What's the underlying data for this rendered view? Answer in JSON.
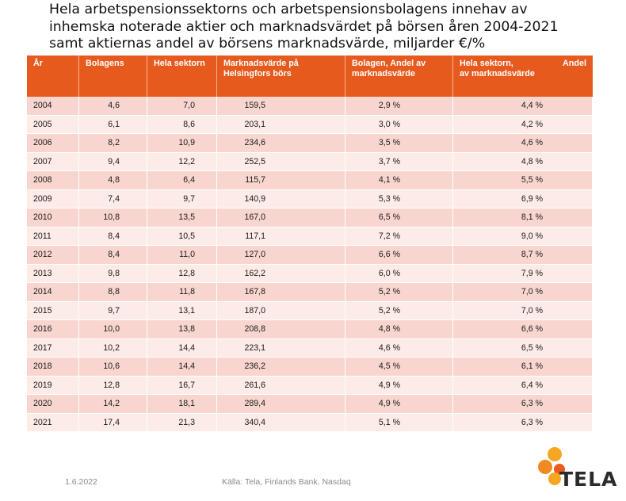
{
  "title_lines": [
    "Hela arbetspensionssektorns och arbetspensionsbolagens innehav av",
    "inhemska noterade aktier och marknadsvärdet på börsen åren 2004-2021",
    "samt aktiernas andel av börsens marknadsvärde, miljarder €/%"
  ],
  "table": {
    "headers": {
      "year": "År",
      "bolagens": "Bolagens",
      "hela_sektorn": "Hela sektorn",
      "marknadsvarde": "Marknadsvärde på Helsingfors börs",
      "bolagen_andel": "Bolagen, Andel av marknadsvärde",
      "hela_sektorn_andel_line1_left": "Hela sektorn,",
      "hela_sektorn_andel_line1_right": "Andel",
      "hela_sektorn_andel_line2": "av marknadsvärde"
    },
    "rows": [
      {
        "year": "2004",
        "bolagens": "4,6",
        "hela": "7,0",
        "marknad": "159,5",
        "bolagen_pct": "2,9 %",
        "hela_pct": "4,4 %"
      },
      {
        "year": "2005",
        "bolagens": "6,1",
        "hela": "8,6",
        "marknad": "203,1",
        "bolagen_pct": "3,0 %",
        "hela_pct": "4,2 %"
      },
      {
        "year": "2006",
        "bolagens": "8,2",
        "hela": "10,9",
        "marknad": "234,6",
        "bolagen_pct": "3,5 %",
        "hela_pct": "4,6 %"
      },
      {
        "year": "2007",
        "bolagens": "9,4",
        "hela": "12,2",
        "marknad": "252,5",
        "bolagen_pct": "3,7 %",
        "hela_pct": "4,8 %"
      },
      {
        "year": "2008",
        "bolagens": "4,8",
        "hela": "6,4",
        "marknad": "115,7",
        "bolagen_pct": "4,1 %",
        "hela_pct": "5,5 %"
      },
      {
        "year": "2009",
        "bolagens": "7,4",
        "hela": "9,7",
        "marknad": "140,9",
        "bolagen_pct": "5,3 %",
        "hela_pct": "6,9 %"
      },
      {
        "year": "2010",
        "bolagens": "10,8",
        "hela": "13,5",
        "marknad": "167,0",
        "bolagen_pct": "6,5 %",
        "hela_pct": "8,1 %"
      },
      {
        "year": "2011",
        "bolagens": "8,4",
        "hela": "10,5",
        "marknad": "117,1",
        "bolagen_pct": "7,2 %",
        "hela_pct": "9,0 %"
      },
      {
        "year": "2012",
        "bolagens": "8,4",
        "hela": "11,0",
        "marknad": "127,0",
        "bolagen_pct": "6,6 %",
        "hela_pct": "8,7 %"
      },
      {
        "year": "2013",
        "bolagens": "9,8",
        "hela": "12,8",
        "marknad": "162,2",
        "bolagen_pct": "6,0 %",
        "hela_pct": "7,9 %"
      },
      {
        "year": "2014",
        "bolagens": "8,8",
        "hela": "11,8",
        "marknad": "167,8",
        "bolagen_pct": "5,2 %",
        "hela_pct": "7,0 %"
      },
      {
        "year": "2015",
        "bolagens": "9,7",
        "hela": "13,1",
        "marknad": "187,0",
        "bolagen_pct": "5,2 %",
        "hela_pct": "7,0 %"
      },
      {
        "year": "2016",
        "bolagens": "10,0",
        "hela": "13,8",
        "marknad": "208,8",
        "bolagen_pct": "4,8 %",
        "hela_pct": "6,6 %"
      },
      {
        "year": "2017",
        "bolagens": "10,2",
        "hela": "14,4",
        "marknad": "223,1",
        "bolagen_pct": "4,6 %",
        "hela_pct": "6,5 %"
      },
      {
        "year": "2018",
        "bolagens": "10,6",
        "hela": "14,4",
        "marknad": "236,2",
        "bolagen_pct": "4,5 %",
        "hela_pct": "6,1 %"
      },
      {
        "year": "2019",
        "bolagens": "12,8",
        "hela": "16,7",
        "marknad": "261,6",
        "bolagen_pct": "4,9 %",
        "hela_pct": "6,4 %"
      },
      {
        "year": "2020",
        "bolagens": "14,2",
        "hela": "18,1",
        "marknad": "289,4",
        "bolagen_pct": "4,9 %",
        "hela_pct": "6,3 %"
      },
      {
        "year": "2021",
        "bolagens": "17,4",
        "hela": "21,3",
        "marknad": "340,4",
        "bolagen_pct": "5,1 %",
        "hela_pct": "6,3 %"
      }
    ]
  },
  "footer": {
    "date": "1.6.2022",
    "source": "Källa: Tela, Finlands Bank, Nasdaq"
  },
  "logo": {
    "text": "TELA",
    "colors": [
      "#f5a623",
      "#e85d1c",
      "#f08a24"
    ]
  }
}
